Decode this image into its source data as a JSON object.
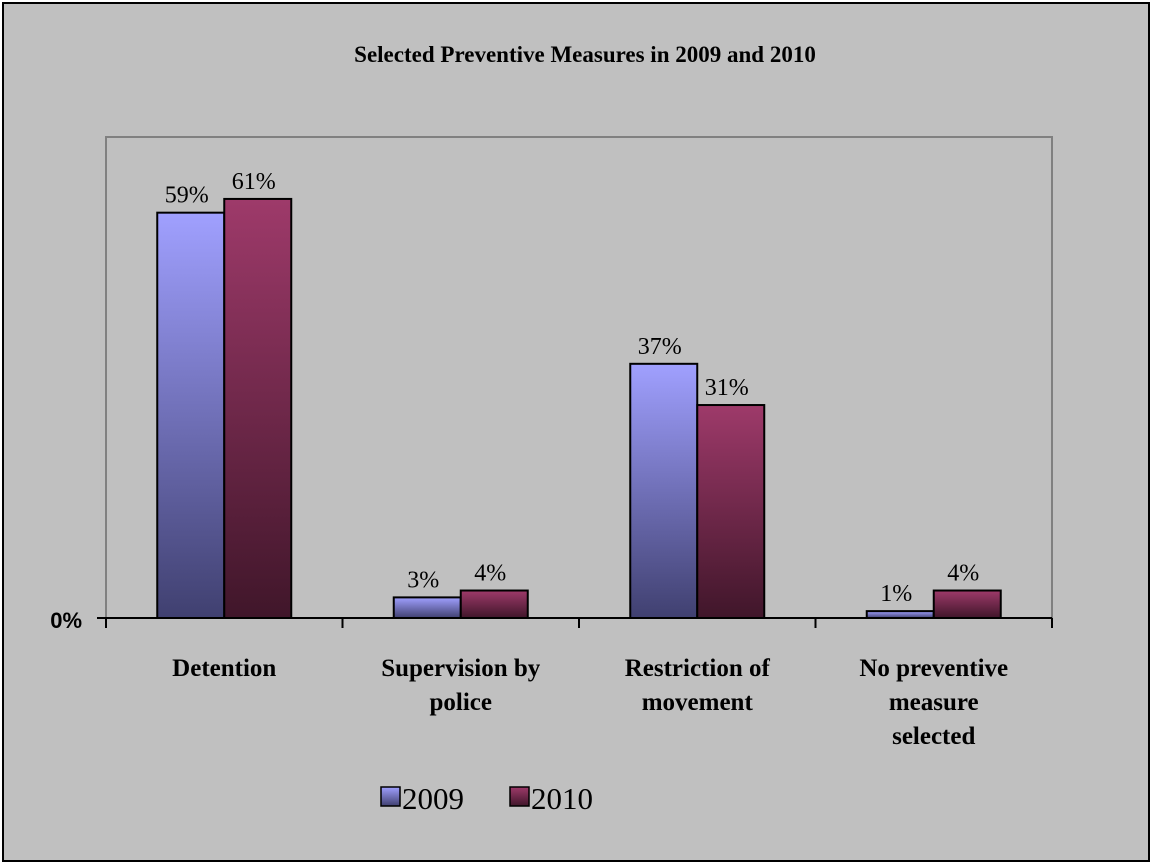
{
  "chart_data": {
    "type": "bar",
    "title": "Selected Preventive Measures in 2009 and 2010",
    "xlabel": "",
    "ylabel": "",
    "y_axis_tick_label": "0%",
    "ylim": [
      0,
      70
    ],
    "categories": [
      [
        "Detention"
      ],
      [
        "Supervision by",
        "police"
      ],
      [
        "Restriction of",
        "movement"
      ],
      [
        "No preventive",
        "measure",
        "selected"
      ]
    ],
    "series": [
      {
        "name": "2009",
        "values": [
          59,
          3,
          37,
          1
        ],
        "labels": [
          "59%",
          "3%",
          "37%",
          "1%"
        ],
        "color_top": "#a0a0ff",
        "color_bottom": "#404070"
      },
      {
        "name": "2010",
        "values": [
          61,
          4,
          31,
          4
        ],
        "labels": [
          "61%",
          "4%",
          "31%",
          "4%"
        ],
        "color_top": "#9e3a6a",
        "color_bottom": "#40162a"
      }
    ],
    "grid": false,
    "legend_position": "bottom",
    "colors": {
      "background": "#c0c0c0",
      "plot_border": "#808080",
      "axis": "#000000"
    }
  }
}
